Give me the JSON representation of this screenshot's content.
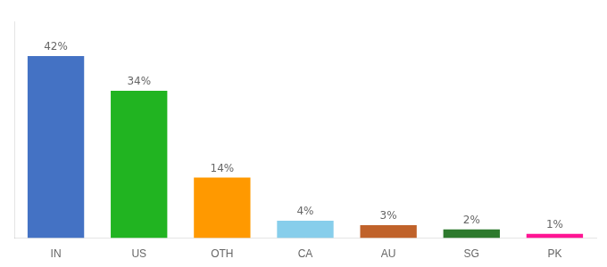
{
  "chart_data": {
    "type": "bar",
    "categories": [
      "IN",
      "US",
      "OTH",
      "CA",
      "AU",
      "SG",
      "PK"
    ],
    "values": [
      42,
      34,
      14,
      4,
      3,
      2,
      1
    ],
    "value_labels": [
      "42%",
      "34%",
      "14%",
      "4%",
      "3%",
      "2%",
      "1%"
    ],
    "data_labels": true,
    "colors": [
      "#4472c4",
      "#21b421",
      "#ff9900",
      "#87ceeb",
      "#c0622a",
      "#2d7a2d",
      "#ff1493"
    ],
    "ylim": [
      0,
      50
    ],
    "tick_labels": "x",
    "grid": false
  }
}
